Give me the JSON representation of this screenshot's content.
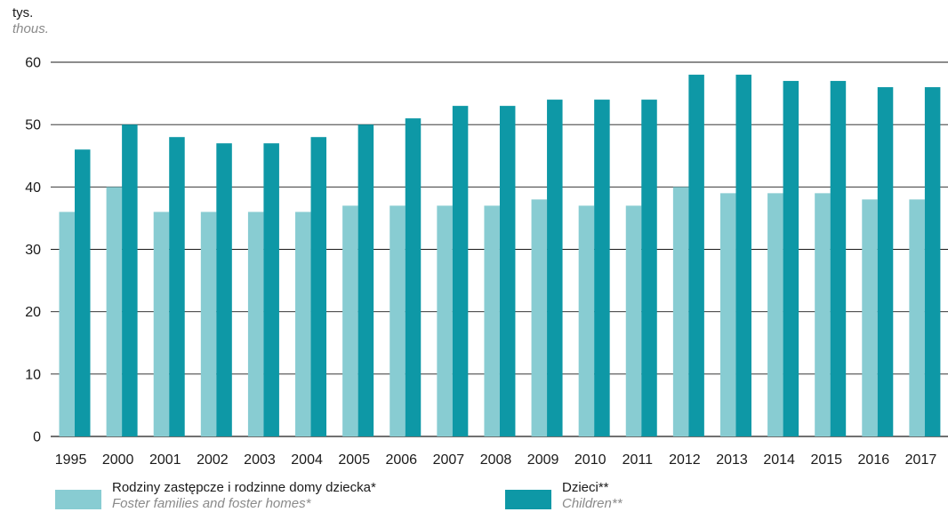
{
  "chart_data": {
    "type": "bar",
    "ylabel_pl": "tys.",
    "ylabel_en": "thous.",
    "ylim": [
      0,
      60
    ],
    "yticks": [
      0,
      10,
      20,
      30,
      40,
      50,
      60
    ],
    "grid": "horizontal",
    "categories": [
      "1995",
      "2000",
      "2001",
      "2002",
      "2003",
      "2004",
      "2005",
      "2006",
      "2007",
      "2008",
      "2009",
      "2010",
      "2011",
      "2012",
      "2013",
      "2014",
      "2015",
      "2016",
      "2017"
    ],
    "series": [
      {
        "name": "Rodziny zastępcze i rodzinne domy dziecka*",
        "name_en": "Foster families and foster homes*",
        "color": "#88ccd2",
        "values": [
          36,
          40,
          36,
          36,
          36,
          36,
          37,
          37,
          37,
          37,
          38,
          37,
          37,
          40,
          39,
          39,
          39,
          38,
          38
        ]
      },
      {
        "name": "Dzieci**",
        "name_en": "Children**",
        "color": "#0e98a6",
        "values": [
          46,
          50,
          48,
          47,
          47,
          48,
          50,
          51,
          53,
          53,
          54,
          54,
          54,
          58,
          58,
          57,
          57,
          56,
          56
        ]
      }
    ]
  }
}
